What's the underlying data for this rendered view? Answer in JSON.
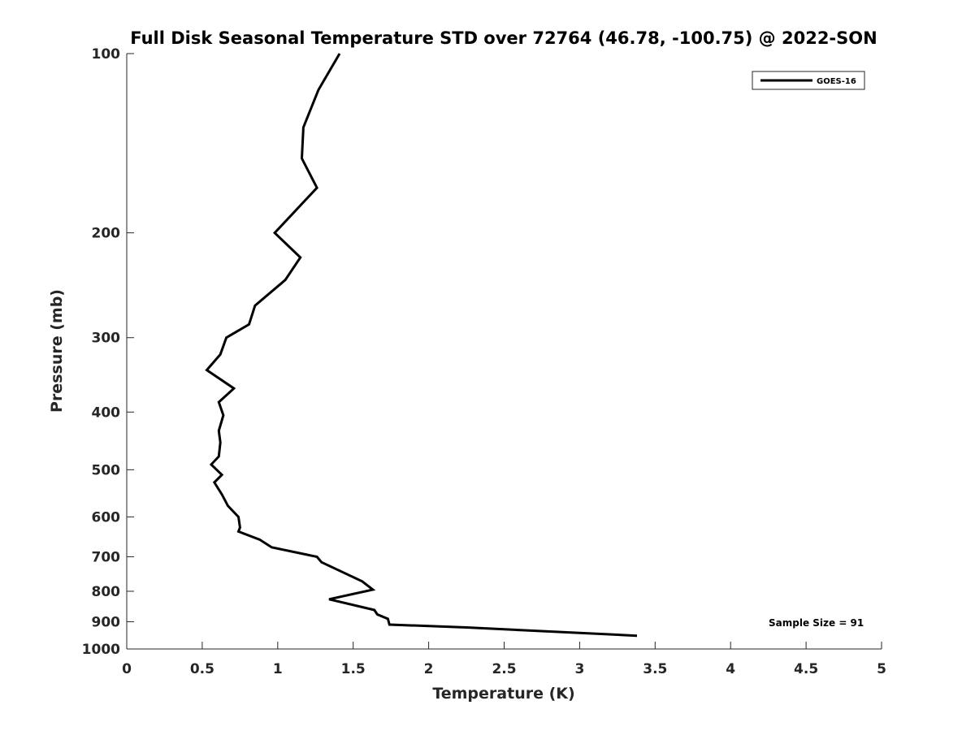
{
  "chart_data": {
    "type": "line",
    "title": "Full Disk Seasonal Temperature STD over 72764 (46.78, -100.75) @ 2022-SON",
    "xlabel": "Temperature (K)",
    "ylabel": "Pressure (mb)",
    "xlim": [
      0,
      5
    ],
    "ylim": [
      100,
      1000
    ],
    "y_scale": "log",
    "y_reversed": true,
    "xticks": [
      0,
      0.5,
      1,
      1.5,
      2,
      2.5,
      3,
      3.5,
      4,
      4.5,
      5
    ],
    "xtick_labels": [
      "0",
      "0.5",
      "1",
      "1.5",
      "2",
      "2.5",
      "3",
      "3.5",
      "4",
      "4.5",
      "5"
    ],
    "yticks": [
      100,
      200,
      300,
      400,
      500,
      600,
      700,
      800,
      900,
      1000
    ],
    "ytick_labels": [
      "100",
      "200",
      "300",
      "400",
      "500",
      "600",
      "700",
      "800",
      "900",
      "1000"
    ],
    "grid": false,
    "legend": {
      "placement": "top-right",
      "entries": [
        "GOES-16"
      ]
    },
    "annotation": "Sample Size = 91",
    "line_color": "#000000",
    "series": [
      {
        "name": "GOES-16",
        "x": [
          1.41,
          1.27,
          1.17,
          1.16,
          1.26,
          0.98,
          1.15,
          1.05,
          0.85,
          0.81,
          0.66,
          0.62,
          0.53,
          0.71,
          0.61,
          0.64,
          0.61,
          0.62,
          0.61,
          0.56,
          0.63,
          0.58,
          0.63,
          0.67,
          0.74,
          0.75,
          0.74,
          0.88,
          0.96,
          1.26,
          1.29,
          1.56,
          1.63,
          1.34,
          1.64,
          1.66,
          1.73,
          1.74,
          2.25,
          3.38
        ],
        "y": [
          100,
          115,
          133,
          150,
          168,
          200,
          220,
          240,
          265,
          285,
          300,
          320,
          340,
          365,
          385,
          405,
          430,
          450,
          475,
          490,
          510,
          525,
          550,
          575,
          600,
          625,
          635,
          655,
          675,
          700,
          715,
          770,
          795,
          825,
          860,
          875,
          890,
          910,
          920,
          950
        ]
      }
    ]
  }
}
